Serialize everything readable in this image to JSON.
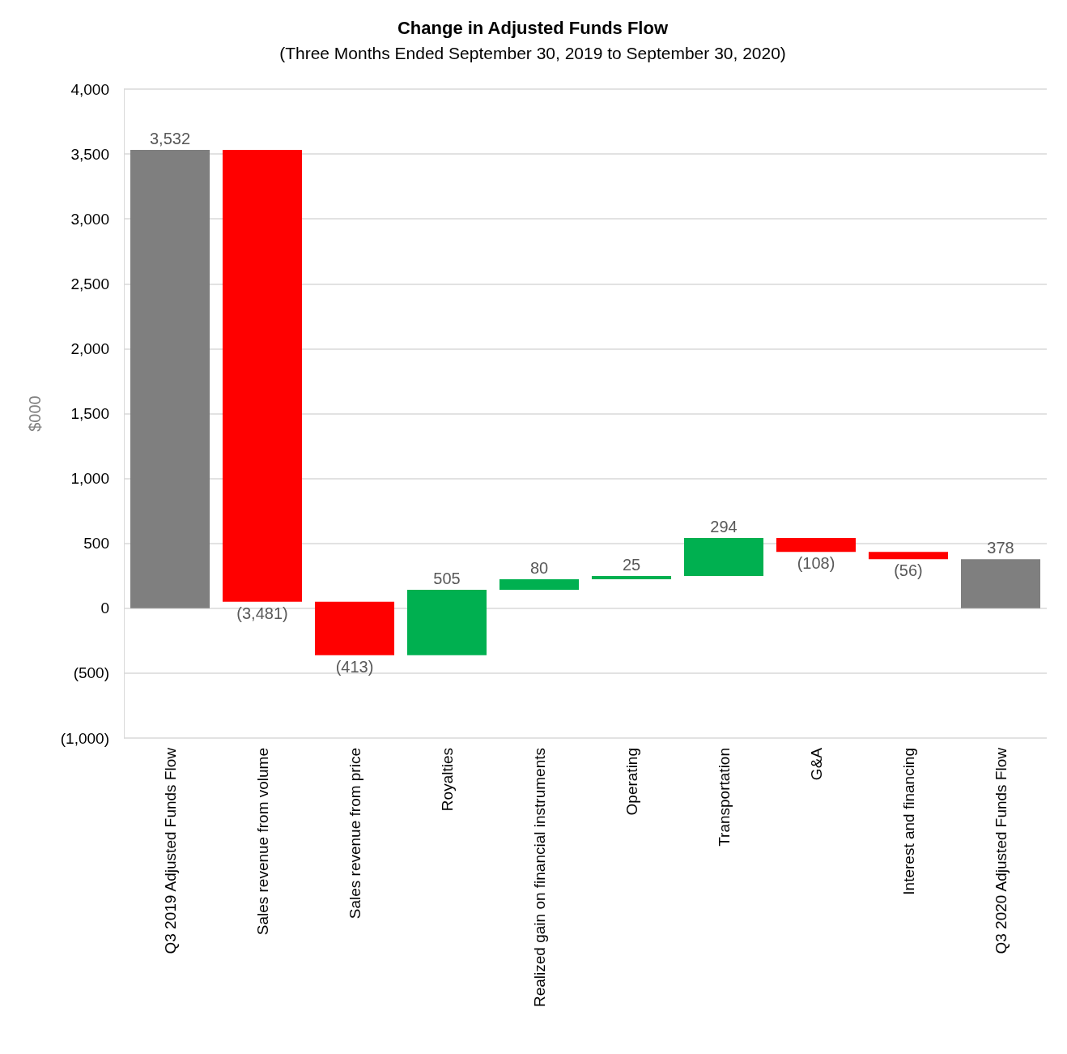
{
  "chart_data": {
    "type": "bar",
    "title": "Change in Adjusted Funds Flow",
    "subtitle": "(Three Months Ended September 30, 2019 to September 30, 2020)",
    "ylabel": "$000",
    "categories": [
      "Q3 2019 Adjusted Funds Flow",
      "Sales revenue from volume",
      "Sales revenue from price",
      "Royalties",
      "Realized gain on financial instruments",
      "Operating",
      "Transportation",
      "G&A",
      "Interest and financing",
      "Q3 2020 Adjusted Funds Flow"
    ],
    "values": [
      3532,
      -3481,
      -413,
      505,
      80,
      25,
      294,
      -108,
      -56,
      378
    ],
    "base": [
      0,
      3532,
      51,
      -362,
      143,
      223,
      248,
      542,
      434,
      0
    ],
    "colors": [
      "#7f7f7f",
      "#ff0000",
      "#ff0000",
      "#00b050",
      "#00b050",
      "#00b050",
      "#00b050",
      "#ff0000",
      "#ff0000",
      "#7f7f7f"
    ],
    "value_labels": [
      "3,532",
      "(3,481)",
      "(413)",
      "505",
      "80",
      "25",
      "294",
      "(108)",
      "(56)",
      "378"
    ],
    "ylim": [
      -1000,
      4000
    ],
    "yticks": [
      {
        "value": -1000,
        "label": "(1,000)"
      },
      {
        "value": -500,
        "label": "(500)"
      },
      {
        "value": 0,
        "label": "0"
      },
      {
        "value": 500,
        "label": "500"
      },
      {
        "value": 1000,
        "label": "1,000"
      },
      {
        "value": 1500,
        "label": "1,500"
      },
      {
        "value": 2000,
        "label": "2,000"
      },
      {
        "value": 2500,
        "label": "2,500"
      },
      {
        "value": 3000,
        "label": "3,000"
      },
      {
        "value": 3500,
        "label": "3,500"
      },
      {
        "value": 4000,
        "label": "4,000"
      }
    ],
    "grid": "y"
  }
}
